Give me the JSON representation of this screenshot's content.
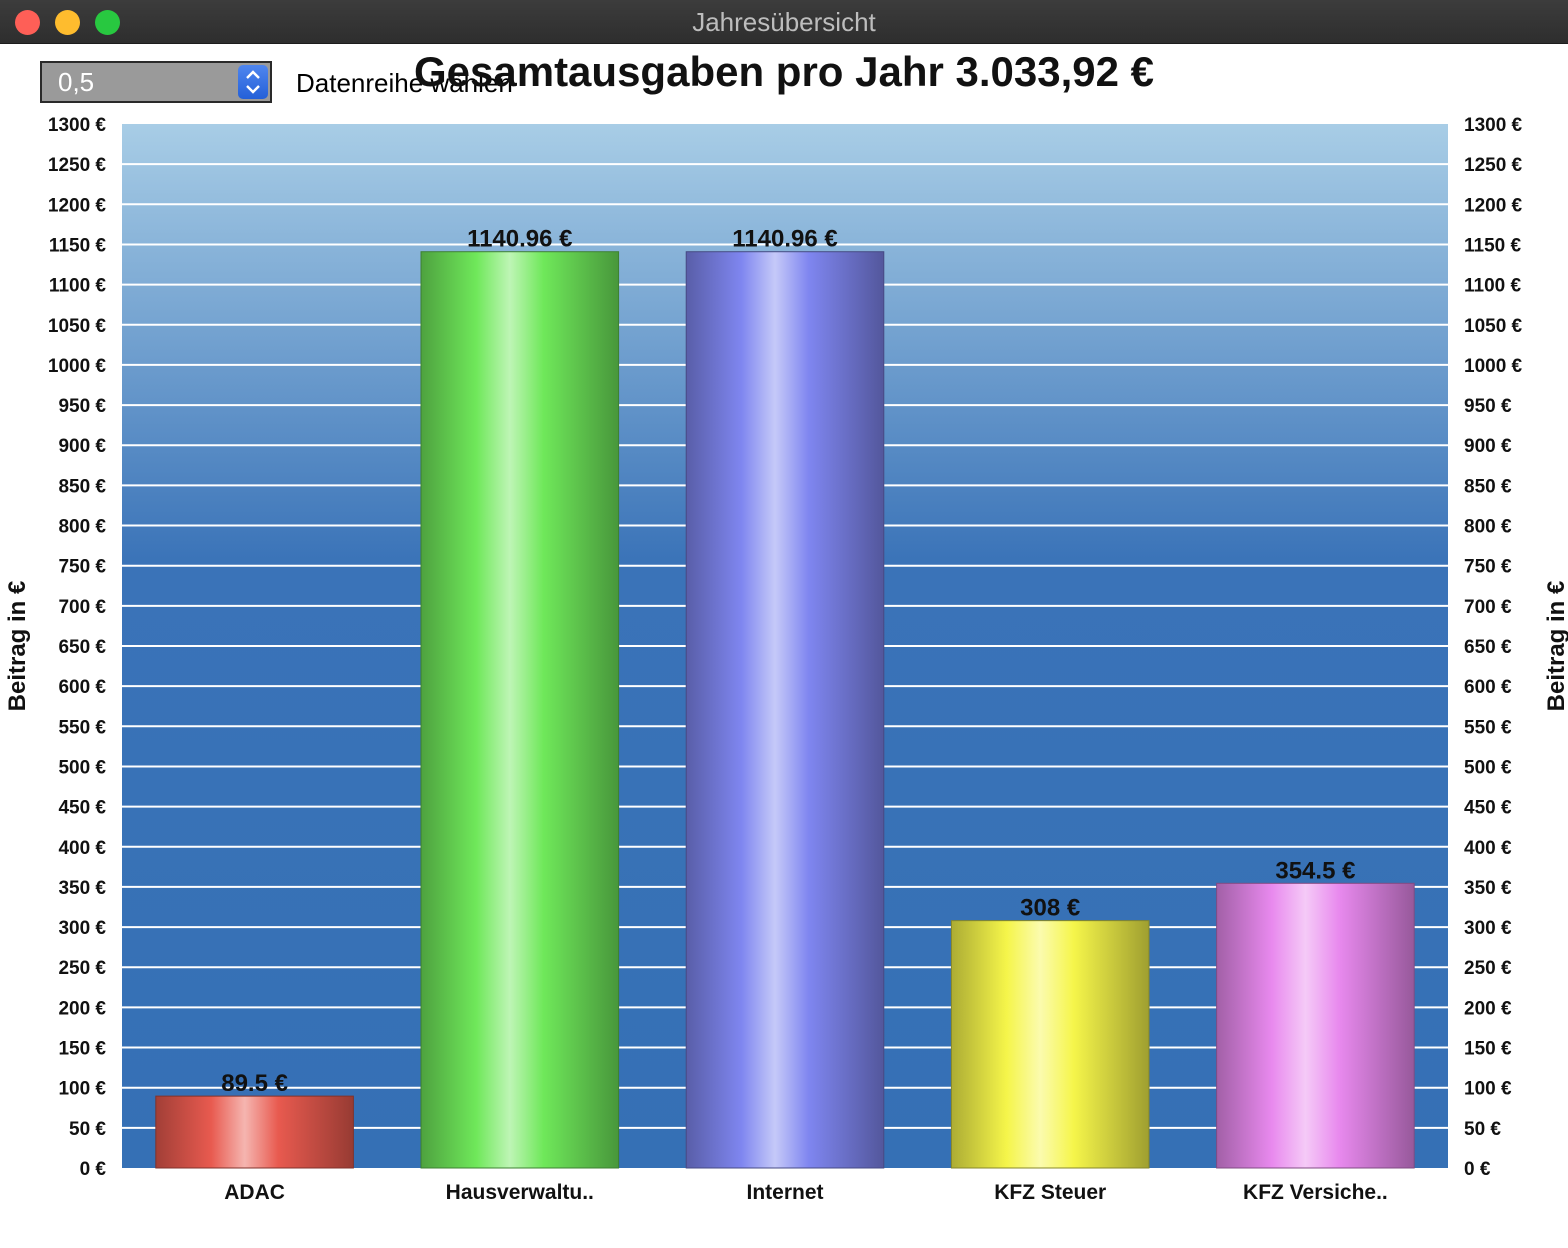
{
  "window": {
    "title": "Jahresübersicht"
  },
  "controls": {
    "spinner_value": "0,5",
    "spinner_label": "Datenreihe wählen"
  },
  "chart_data": {
    "type": "bar",
    "title": "Gesamtausgaben pro Jahr 3.033,92 €",
    "ylabel": "Beitrag in €",
    "xlabel": "",
    "ylim": [
      0,
      1300
    ],
    "ytick_step": 50,
    "ytick_suffix": " €",
    "grid": true,
    "categories": [
      "ADAC",
      "Hausverwaltu..",
      "Internet",
      "KFZ Steuer",
      "KFZ Versiche.."
    ],
    "values": [
      89.5,
      1140.96,
      1140.96,
      308,
      354.5
    ],
    "value_labels": [
      "89.5 €",
      "1140.96 €",
      "1140.96 €",
      "308 €",
      "354.5 €"
    ],
    "colors": [
      "#e85a4f",
      "#6fe85a",
      "#7f86f0",
      "#f5f54a",
      "#e889ee"
    ]
  }
}
